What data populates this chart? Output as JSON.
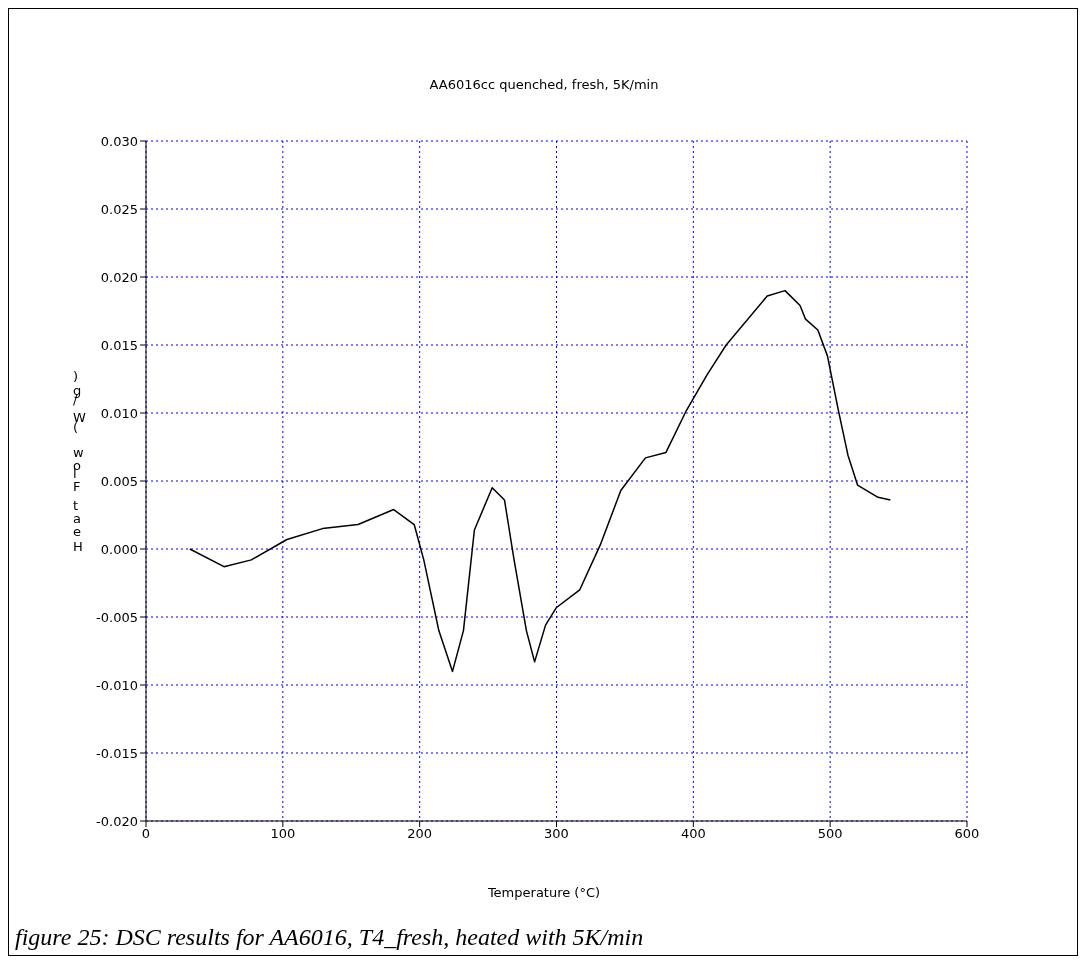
{
  "chart_data": {
    "type": "line",
    "title": "AA6016cc quenched, fresh, 5K/min",
    "xlabel": "Temperature (°C)",
    "ylabel": "Heat Flow (W/g)",
    "annotations": [
      "figure 25: DSC results for AA6016, T4_fresh, heated with 5K/min"
    ],
    "x": [
      32,
      57,
      77,
      103,
      129,
      155,
      181,
      196,
      203,
      214,
      224,
      232,
      240,
      253,
      262,
      269,
      278,
      284,
      292,
      300,
      317,
      332,
      347,
      365,
      380,
      395,
      410,
      424,
      454,
      467,
      478,
      482,
      491,
      498,
      506,
      513,
      520,
      535,
      544
    ],
    "series": [
      {
        "color": "#000000",
        "values": [
          0.0,
          -0.0013,
          -0.0008,
          0.0007,
          0.0015,
          0.0018,
          0.0029,
          0.0018,
          -0.0008,
          -0.006,
          -0.009,
          -0.006,
          0.0014,
          0.0045,
          0.0036,
          -0.0008,
          -0.006,
          -0.0083,
          -0.0056,
          -0.0043,
          -0.003,
          0.0003,
          0.0043,
          0.0067,
          0.0071,
          0.0102,
          0.0128,
          0.015,
          0.0186,
          0.019,
          0.0179,
          0.0169,
          0.0161,
          0.0142,
          0.0102,
          0.0069,
          0.0047,
          0.0038,
          0.0036
        ]
      }
    ],
    "xlim": [
      0,
      600
    ],
    "xticks": [
      0,
      100,
      200,
      300,
      400,
      500,
      600
    ],
    "ylim": [
      -0.02,
      0.03
    ],
    "yticks": [
      {
        "value": -0.02,
        "label": "-0.020"
      },
      {
        "value": -0.015,
        "label": "-0.015"
      },
      {
        "value": -0.01,
        "label": "-0.010"
      },
      {
        "value": -0.005,
        "label": "-0.005"
      },
      {
        "value": 0,
        "label": "0.000"
      },
      {
        "value": 0.005,
        "label": "0.005"
      },
      {
        "value": 0.01,
        "label": "0.010"
      },
      {
        "value": 0.015,
        "label": "0.015"
      },
      {
        "value": 0.02,
        "label": "0.020"
      },
      {
        "value": 0.025,
        "label": "0.025"
      },
      {
        "value": 0.03,
        "label": "0.030"
      }
    ],
    "grid": true,
    "marker": "none",
    "line_style": "solid"
  }
}
